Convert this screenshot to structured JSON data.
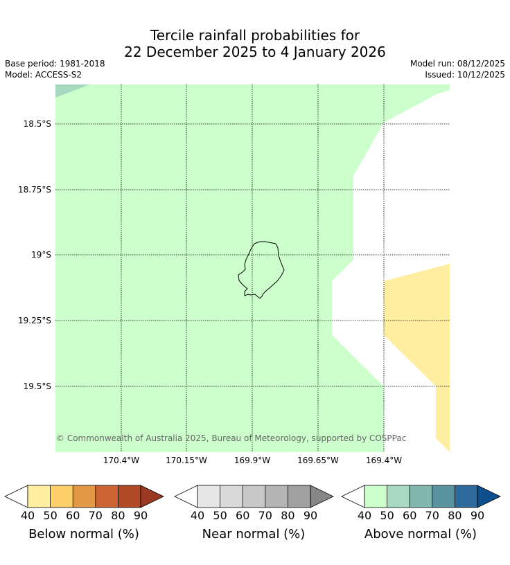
{
  "title": {
    "line1": "Tercile rainfall probabilities for",
    "line2": "22 December 2025 to 4 January 2026"
  },
  "meta": {
    "base_period": "Base period: 1981-2018",
    "model": "Model: ACCESS-S2",
    "model_run": "Model run: 08/12/2025",
    "issued": "Issued: 10/12/2025"
  },
  "map": {
    "lat_labels": [
      "18.5°S",
      "18.75°S",
      "19°S",
      "19.25°S",
      "19.5°S"
    ],
    "lon_labels": [
      "170.4°W",
      "170.15°W",
      "169.9°W",
      "169.65°W",
      "169.4°W"
    ],
    "colors": {
      "above_40_50": "#ccffcc",
      "above_50_60": "#a6d9bf",
      "below_40_50": "#ffeea0",
      "neutral": "#ffffff"
    },
    "copyright": "© Commonwealth of Australia 2025, Bureau of Meteorology, supported by COSPPac"
  },
  "colorbars": [
    {
      "label": "Below normal (%)",
      "ticks": [
        "40",
        "50",
        "60",
        "70",
        "80",
        "90"
      ],
      "colors": [
        "#ffeea0",
        "#ffcf6a",
        "#e39845",
        "#cc6434",
        "#b24a28"
      ],
      "extend_low": "#ffffff",
      "extend_high": "#9a3a22"
    },
    {
      "label": "Near normal (%)",
      "ticks": [
        "40",
        "50",
        "60",
        "70",
        "80",
        "90"
      ],
      "colors": [
        "#e6e6e6",
        "#d9d9d9",
        "#c8c8c8",
        "#b4b4b4",
        "#a0a0a0"
      ],
      "extend_low": "#ffffff",
      "extend_high": "#878787"
    },
    {
      "label": "Above normal (%)",
      "ticks": [
        "40",
        "50",
        "60",
        "70",
        "80",
        "90"
      ],
      "colors": [
        "#ccffcc",
        "#a6d9bf",
        "#80b8b0",
        "#5a94a0",
        "#2f6a9c"
      ],
      "extend_low": "#ffffff",
      "extend_high": "#0d4f8c"
    }
  ]
}
